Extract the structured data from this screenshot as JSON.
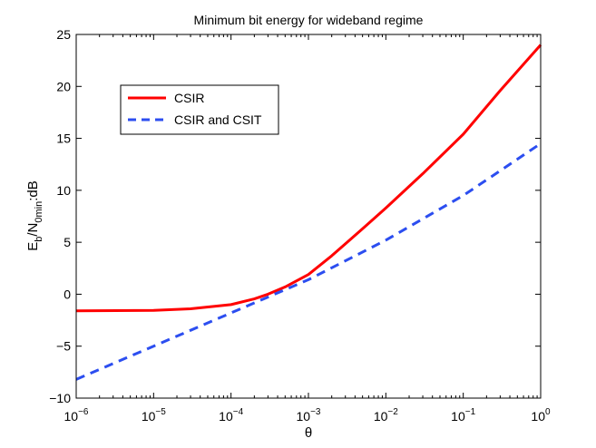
{
  "chart_data": {
    "type": "line",
    "title": "Minimum bit energy for wideband regime",
    "xlabel": "θ",
    "xscale": "log",
    "xlim": [
      1e-06,
      1
    ],
    "xticks": [
      {
        "value": 1e-06,
        "base": "10",
        "exp": "−6"
      },
      {
        "value": 1e-05,
        "base": "10",
        "exp": "−5"
      },
      {
        "value": 0.0001,
        "base": "10",
        "exp": "−4"
      },
      {
        "value": 0.001,
        "base": "10",
        "exp": "−3"
      },
      {
        "value": 0.01,
        "base": "10",
        "exp": "−2"
      },
      {
        "value": 0.1,
        "base": "10",
        "exp": "−1"
      },
      {
        "value": 1,
        "base": "10",
        "exp": "0"
      }
    ],
    "ylabel": {
      "main": "E",
      "sub1": "b",
      "mid": "/N",
      "sub2": "0min",
      "tail": ":dB"
    },
    "ylim": [
      -10,
      25
    ],
    "yticks": [
      -10,
      -5,
      0,
      5,
      10,
      15,
      20,
      25
    ],
    "legend_position": "upper-left",
    "series": [
      {
        "name": "CSIR",
        "color": "#ff0000",
        "dash": "solid",
        "x": [
          1e-06,
          1e-05,
          3e-05,
          0.0001,
          0.0002,
          0.0003,
          0.0005,
          0.001,
          0.002,
          0.005,
          0.01,
          0.03,
          0.1,
          0.3,
          1
        ],
        "y": [
          -1.6,
          -1.55,
          -1.4,
          -1.0,
          -0.45,
          0.0,
          0.7,
          1.9,
          3.7,
          6.3,
          8.3,
          11.6,
          15.4,
          19.6,
          24.0
        ]
      },
      {
        "name": "CSIR and CSIT",
        "color": "#2c4ef0",
        "dash": "dashed",
        "x": [
          1e-06,
          1e-05,
          0.0001,
          0.001,
          0.01,
          0.1,
          1
        ],
        "y": [
          -8.2,
          -5.0,
          -1.8,
          1.4,
          5.2,
          9.5,
          14.5
        ]
      }
    ]
  }
}
